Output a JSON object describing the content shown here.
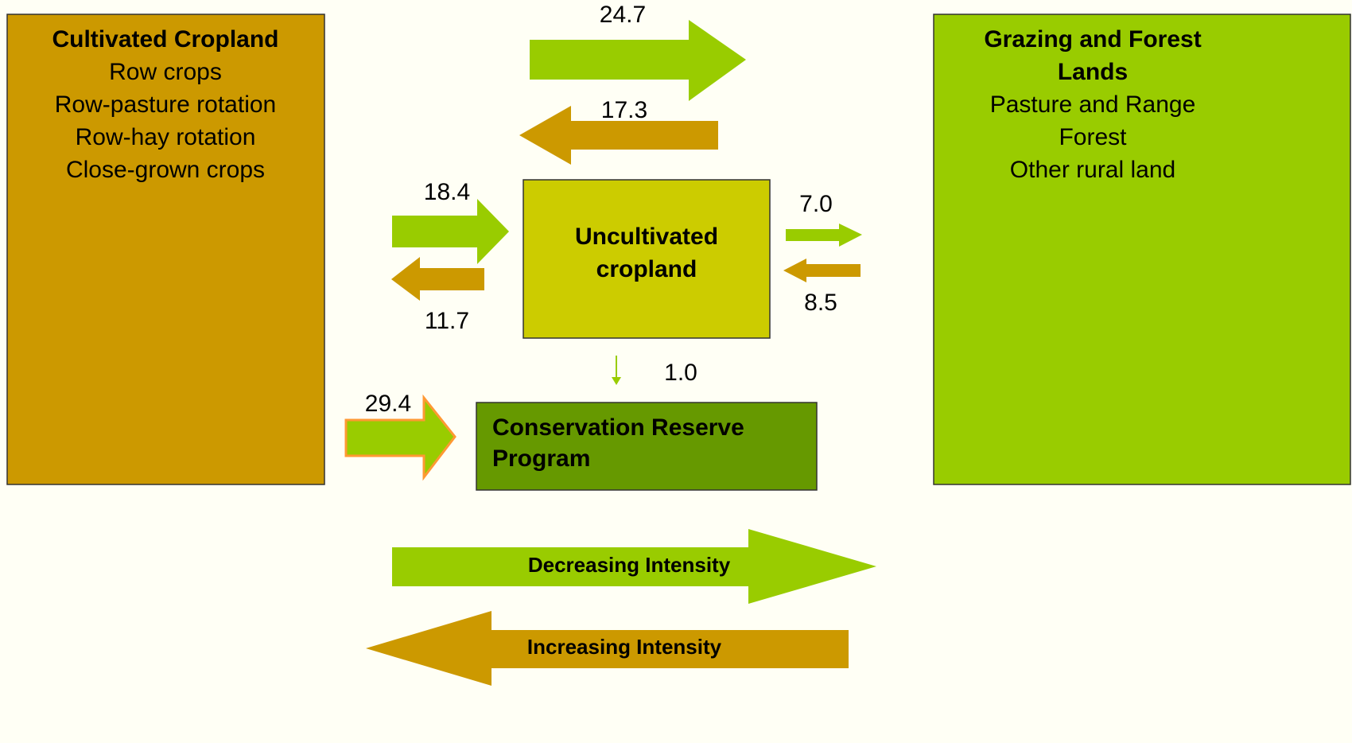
{
  "nodes": [
    {
      "title": "Cultivated Cropland",
      "items": [
        "Row crops",
        "Row-pasture rotation",
        "Row-hay rotation",
        "Close-grown crops"
      ]
    },
    {
      "title": [
        "Grazing and Forest",
        "Lands"
      ],
      "items": [
        "Pasture and Range",
        "Forest",
        "Other rural land"
      ]
    },
    {
      "title": [
        "Uncultivated",
        "cropland"
      ]
    },
    {
      "title": [
        "Conservation Reserve",
        "Program"
      ]
    }
  ],
  "flows": [
    "24.7",
    "17.3",
    "18.4",
    "11.7",
    "7.0",
    "8.5",
    "1.0",
    "29.4"
  ],
  "legend": [
    "Decreasing Intensity",
    "Increasing Intensity"
  ]
}
